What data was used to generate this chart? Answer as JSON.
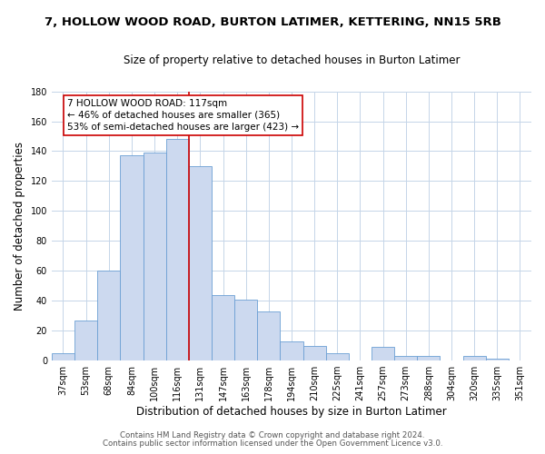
{
  "title": "7, HOLLOW WOOD ROAD, BURTON LATIMER, KETTERING, NN15 5RB",
  "subtitle": "Size of property relative to detached houses in Burton Latimer",
  "xlabel": "Distribution of detached houses by size in Burton Latimer",
  "ylabel": "Number of detached properties",
  "bar_labels": [
    "37sqm",
    "53sqm",
    "68sqm",
    "84sqm",
    "100sqm",
    "116sqm",
    "131sqm",
    "147sqm",
    "163sqm",
    "178sqm",
    "194sqm",
    "210sqm",
    "225sqm",
    "241sqm",
    "257sqm",
    "273sqm",
    "288sqm",
    "304sqm",
    "320sqm",
    "335sqm",
    "351sqm"
  ],
  "bar_values": [
    5,
    27,
    60,
    137,
    139,
    148,
    130,
    44,
    41,
    33,
    13,
    10,
    5,
    0,
    9,
    3,
    3,
    0,
    3,
    1,
    0
  ],
  "bar_color": "#ccd9ef",
  "bar_edge_color": "#6b9fd4",
  "vertical_line_x": 5.5,
  "vertical_line_color": "#cc0000",
  "annotation_text": "7 HOLLOW WOOD ROAD: 117sqm\n← 46% of detached houses are smaller (365)\n53% of semi-detached houses are larger (423) →",
  "annotation_box_edge": "#cc0000",
  "annotation_box_face": "#ffffff",
  "ylim": [
    0,
    180
  ],
  "yticks": [
    0,
    20,
    40,
    60,
    80,
    100,
    120,
    140,
    160,
    180
  ],
  "footer_line1": "Contains HM Land Registry data © Crown copyright and database right 2024.",
  "footer_line2": "Contains public sector information licensed under the Open Government Licence v3.0.",
  "background_color": "#ffffff",
  "grid_color": "#c5d5e8",
  "title_fontsize": 9.5,
  "subtitle_fontsize": 8.5,
  "axis_label_fontsize": 8.5,
  "tick_fontsize": 7,
  "annotation_fontsize": 7.5,
  "footer_fontsize": 6.2
}
